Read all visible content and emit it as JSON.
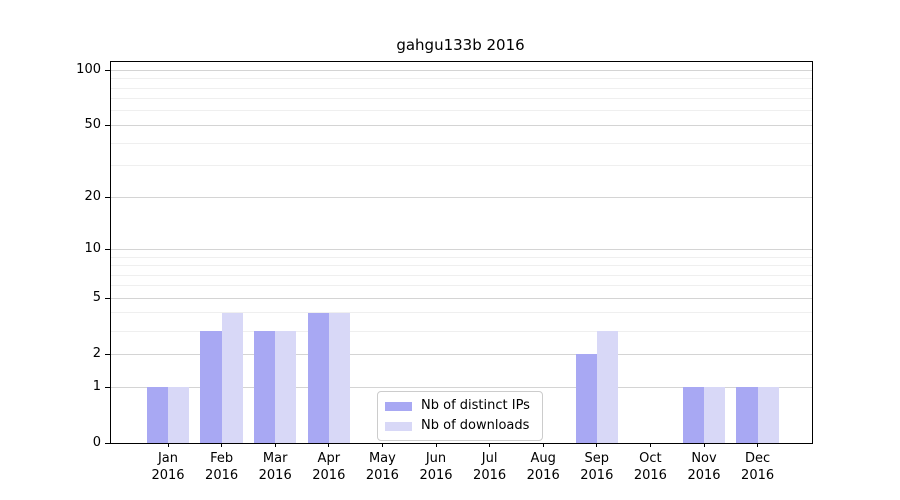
{
  "chart_data": {
    "type": "bar",
    "title": "gahgu133b 2016",
    "year": "2016",
    "categories": [
      "Jan",
      "Feb",
      "Mar",
      "Apr",
      "May",
      "Jun",
      "Jul",
      "Aug",
      "Sep",
      "Oct",
      "Nov",
      "Dec"
    ],
    "series": [
      {
        "name": "Nb of distinct IPs",
        "color": "#a8a8f3",
        "values": [
          1,
          3,
          3,
          4,
          0,
          0,
          0,
          0,
          2,
          0,
          1,
          1
        ]
      },
      {
        "name": "Nb of downloads",
        "color": "#d8d8f7",
        "values": [
          1,
          4,
          3,
          4,
          0,
          0,
          0,
          0,
          3,
          0,
          1,
          1
        ]
      }
    ],
    "y_scale": "log10(1+v), linear-origin at 0",
    "y_major_ticks": [
      0,
      1,
      2,
      5,
      10,
      20,
      50,
      100
    ],
    "y_minor_ticks": [
      3,
      4,
      6,
      7,
      8,
      9,
      30,
      40,
      60,
      70,
      80,
      90
    ],
    "ylim": [
      0,
      111
    ],
    "xlabel": "",
    "ylabel": "",
    "grid": "horizontal",
    "legend_position": "bottom-center",
    "colors": {
      "grid_major": "#d4d4d4",
      "grid_minor": "#efefef",
      "spine": "#000000",
      "text": "#000000",
      "background": "#ffffff"
    }
  }
}
